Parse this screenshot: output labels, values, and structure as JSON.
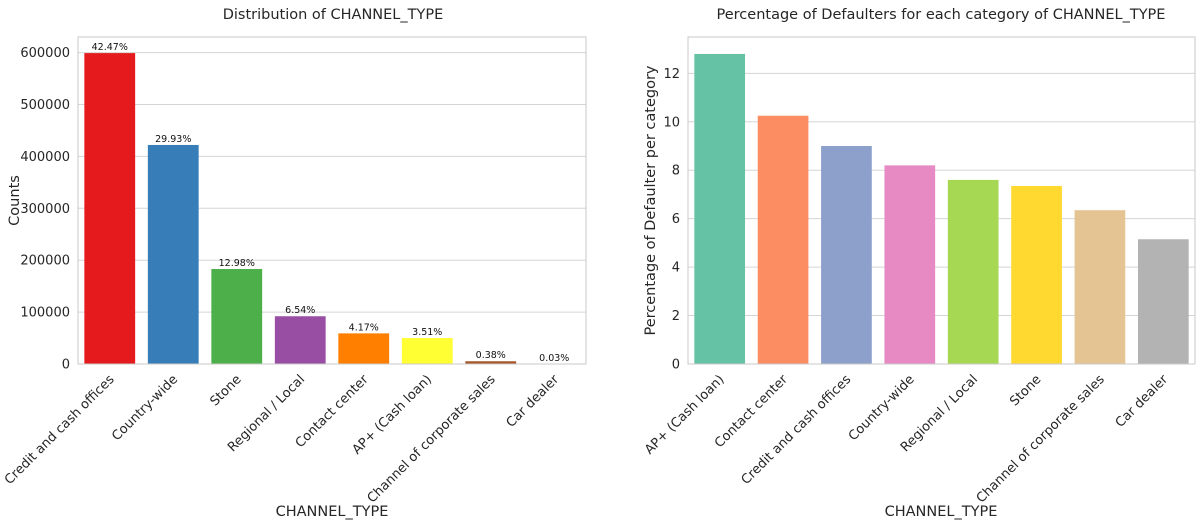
{
  "chart_data": [
    {
      "type": "bar",
      "title": "Distribution of CHANNEL_TYPE",
      "xlabel": "CHANNEL_TYPE",
      "ylabel": "Counts",
      "categories": [
        "Credit and cash offices",
        "Country-wide",
        "Stone",
        "Regional / Local",
        "Contact center",
        "AP+ (Cash loan)",
        "Channel of corporate sales",
        "Car dealer"
      ],
      "values": [
        599000,
        422000,
        183000,
        92000,
        59000,
        50000,
        5300,
        420
      ],
      "data_labels": [
        "42.47%",
        "29.93%",
        "12.98%",
        "6.54%",
        "4.17%",
        "3.51%",
        "0.38%",
        "0.03%"
      ],
      "colors": [
        "#e41a1c",
        "#377eb8",
        "#4daf4a",
        "#984ea3",
        "#ff7f00",
        "#ffff33",
        "#a65628",
        "#f781bf"
      ],
      "ylim": [
        0,
        630000
      ],
      "yticks": [
        0,
        100000,
        200000,
        300000,
        400000,
        500000,
        600000
      ],
      "grid": true
    },
    {
      "type": "bar",
      "title": "Percentage of Defaulters for each category of CHANNEL_TYPE",
      "xlabel": "CHANNEL_TYPE",
      "ylabel": "Percentage of Defaulter per category",
      "categories": [
        "AP+ (Cash loan)",
        "Contact center",
        "Credit and cash offices",
        "Country-wide",
        "Regional / Local",
        "Stone",
        "Channel of corporate sales",
        "Car dealer"
      ],
      "values": [
        12.8,
        10.25,
        9.0,
        8.2,
        7.6,
        7.35,
        6.35,
        5.15
      ],
      "colors": [
        "#66c2a5",
        "#fc8d62",
        "#8da0cb",
        "#e78ac3",
        "#a6d854",
        "#ffd92f",
        "#e5c494",
        "#b3b3b3"
      ],
      "ylim": [
        0,
        13.5
      ],
      "yticks": [
        0,
        2,
        4,
        6,
        8,
        10,
        12
      ],
      "grid": true
    }
  ]
}
